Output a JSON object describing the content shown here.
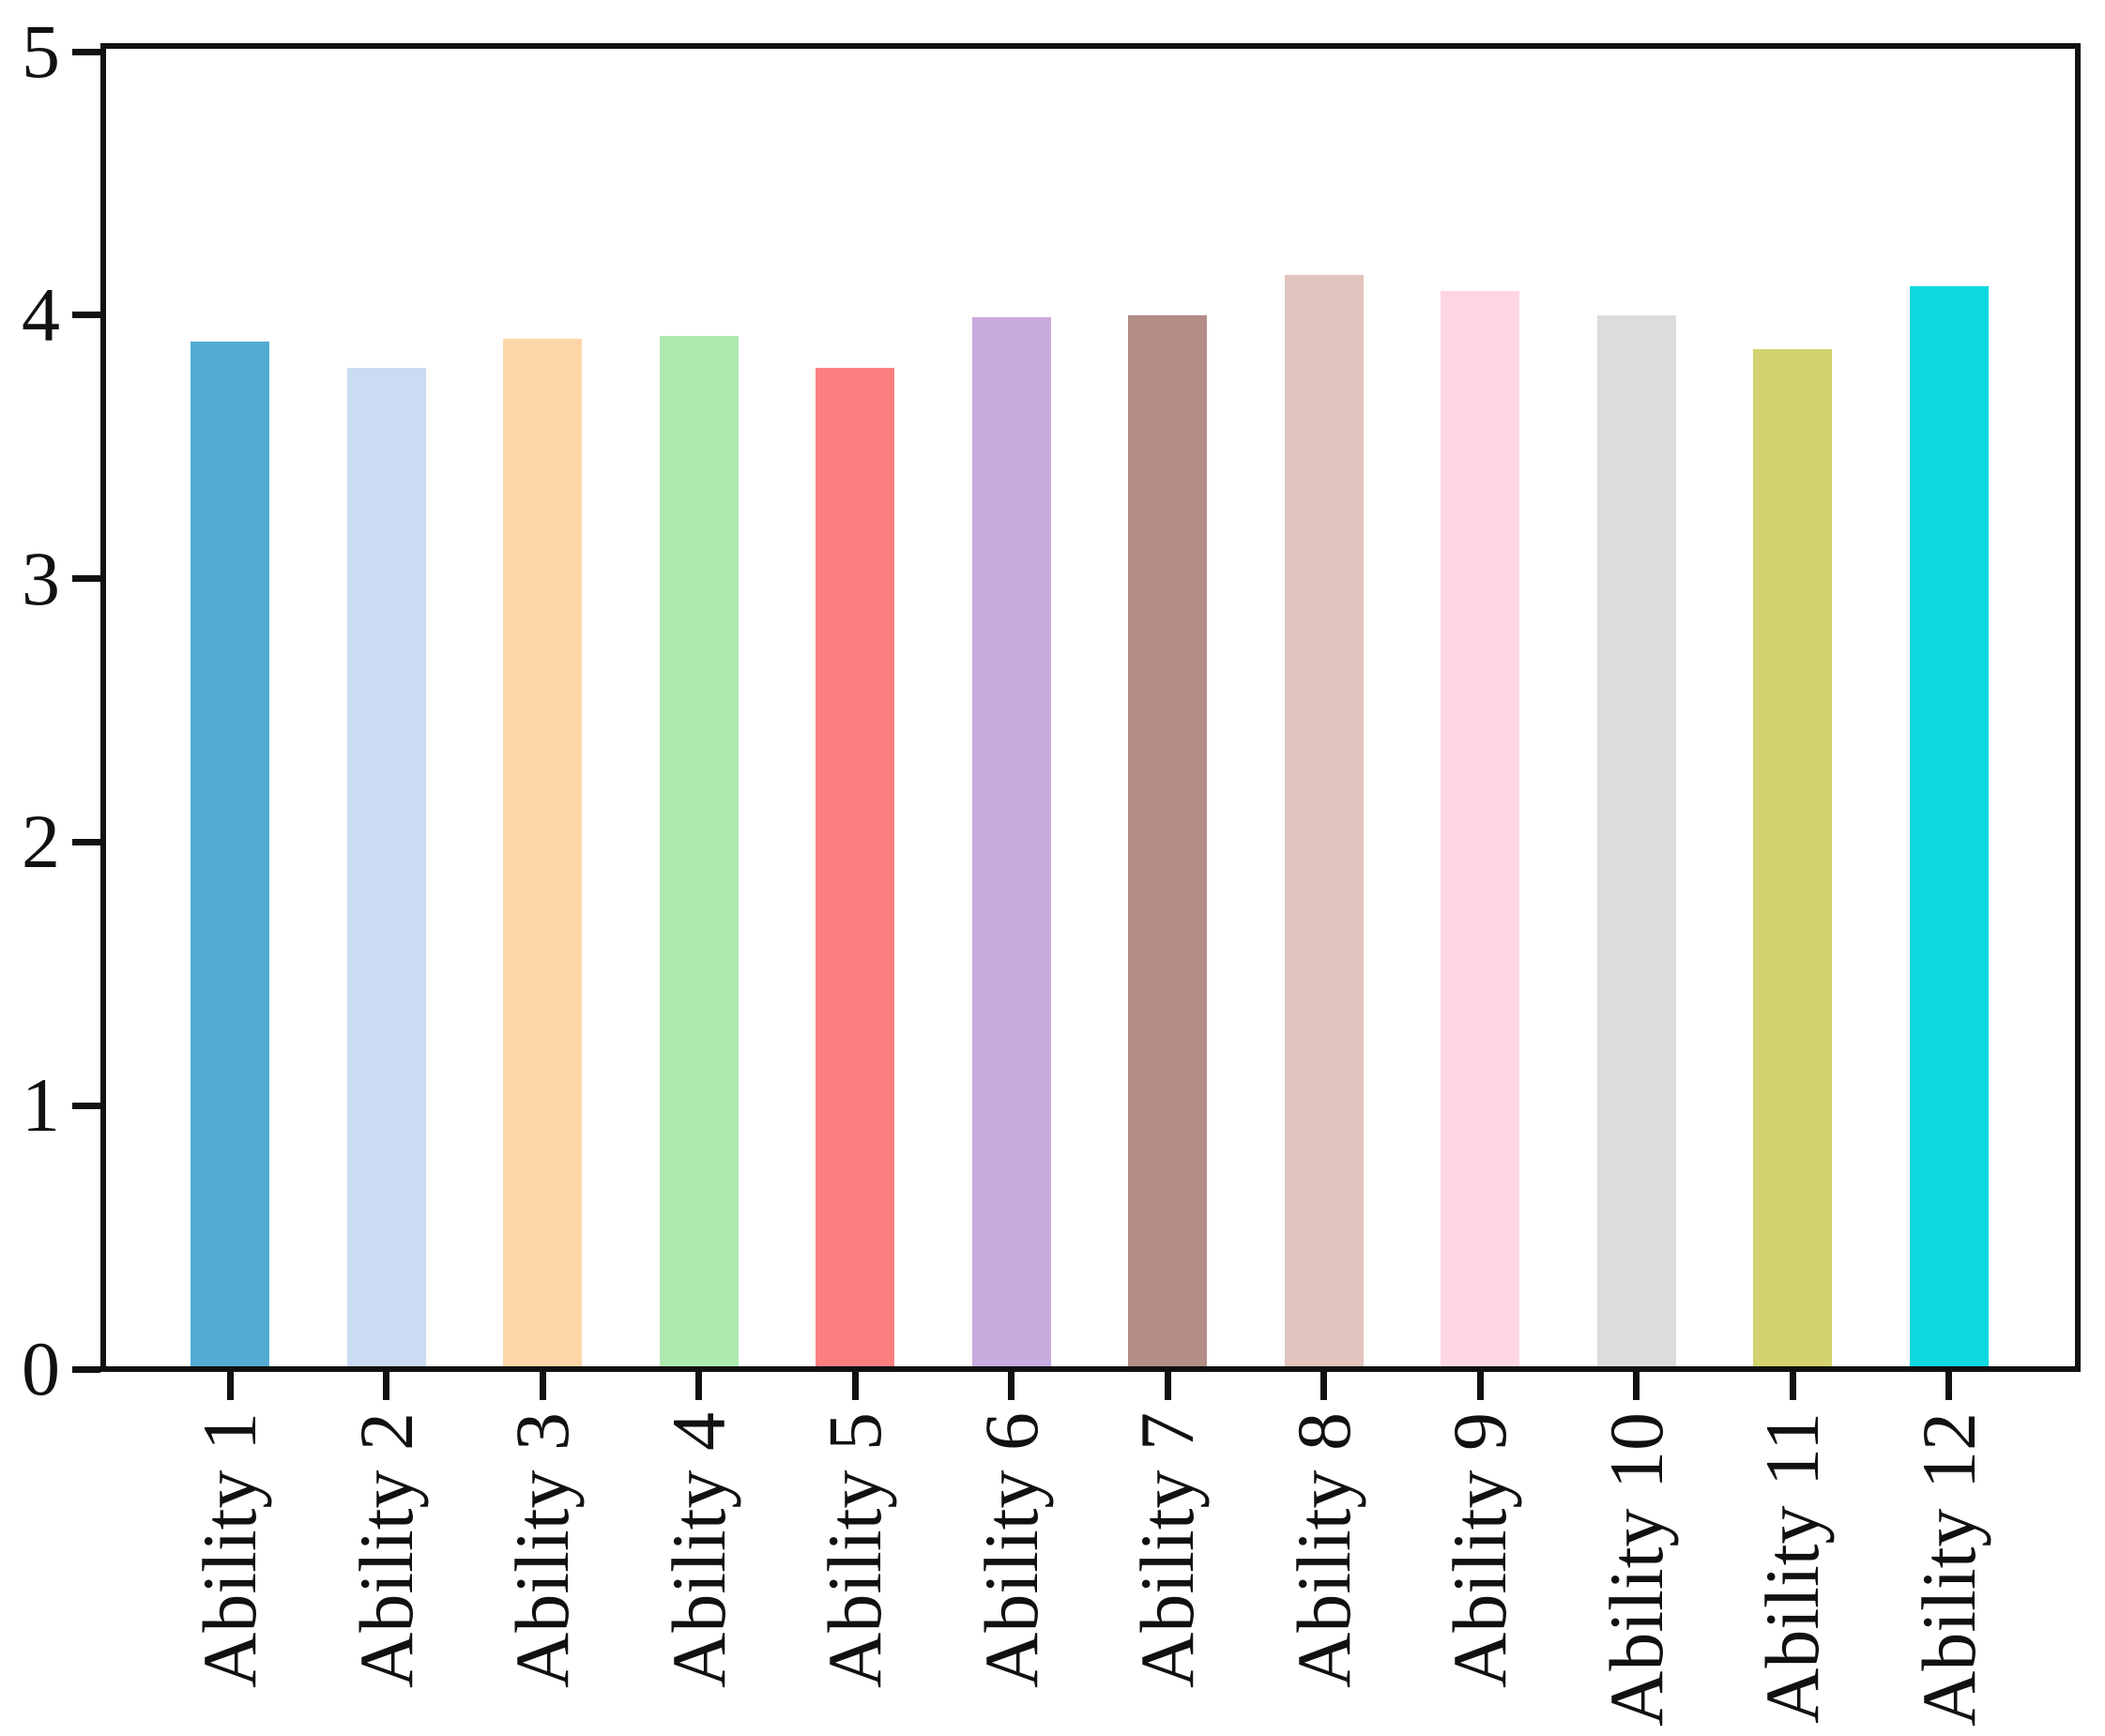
{
  "chart_data": {
    "type": "bar",
    "title": "",
    "xlabel": "",
    "ylabel": "",
    "categories": [
      "Ability 1",
      "Ability 2",
      "Ability 3",
      "Ability 4",
      "Ability 5",
      "Ability 6",
      "Ability 7",
      "Ability 8",
      "Ability 9",
      "Ability 10",
      "Ability 11",
      "Ability 12"
    ],
    "values": [
      3.89,
      3.79,
      3.9,
      3.91,
      3.79,
      3.98,
      3.99,
      4.14,
      4.08,
      3.99,
      3.86,
      4.1
    ],
    "bar_colors": [
      "#54abd2",
      "#c9dcf1",
      "#fcd6a8",
      "#aeeab0",
      "#fc7f80",
      "#c7aade",
      "#b28e86",
      "#e0c4bd",
      "#fed5e3",
      "#dcdcdc",
      "#d3d36f",
      "#0cd8e0"
    ],
    "ylim": [
      0,
      5
    ],
    "yticks": [
      "0",
      "1",
      "2",
      "3",
      "4",
      "5"
    ],
    "xtick_rotation_degrees": 90,
    "grid": false,
    "legend_position": "none",
    "axis_color": "#111111",
    "tick_label_color": "#111111",
    "background_color": "#ffffff"
  }
}
